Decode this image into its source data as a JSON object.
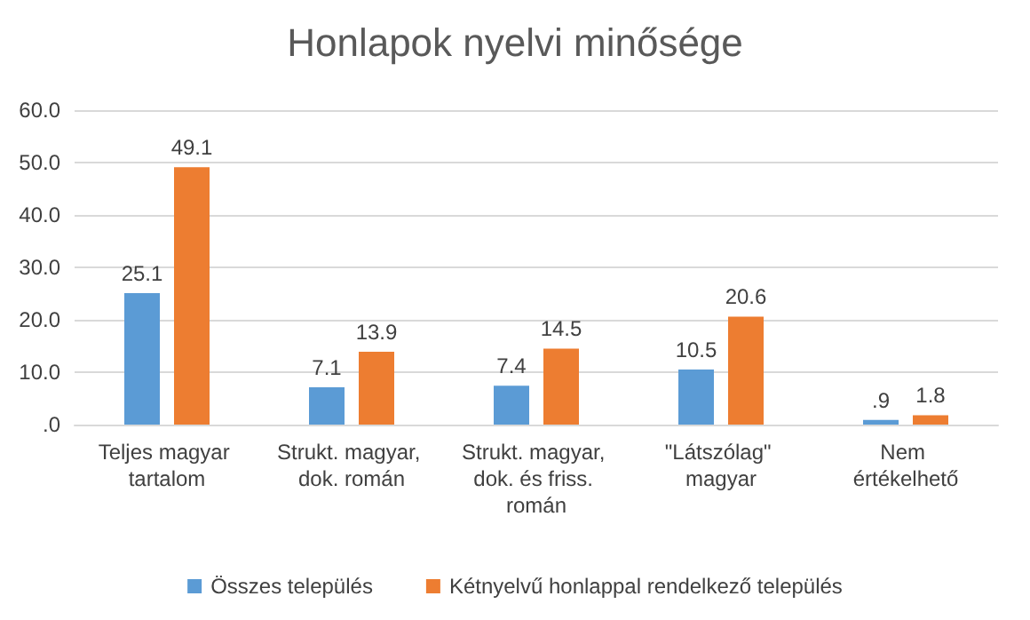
{
  "chart_data": {
    "type": "bar",
    "title": "Honlapok nyelvi minősége",
    "categories": [
      "Teljes magyar tartalom",
      "Strukt. magyar, dok. román",
      "Strukt. magyar, dok. és friss. román",
      "\"Látszólag\" magyar",
      "Nem értékelhető"
    ],
    "series": [
      {
        "name": "Összes település",
        "color": "#5b9bd5",
        "values": [
          25.1,
          7.1,
          7.4,
          10.5,
          0.9
        ],
        "value_labels": [
          "25.1",
          "7.1",
          "7.4",
          "10.5",
          ".9"
        ]
      },
      {
        "name": "Kétnyelvű honlappal rendelkező település",
        "color": "#ed7d31",
        "values": [
          49.1,
          13.9,
          14.5,
          20.6,
          1.8
        ],
        "value_labels": [
          "49.1",
          "13.9",
          "14.5",
          "20.6",
          "1.8"
        ]
      }
    ],
    "ylim": [
      0,
      60
    ],
    "yticks": [
      {
        "value": 0,
        "label": ".0"
      },
      {
        "value": 10,
        "label": "10.0"
      },
      {
        "value": 20,
        "label": "20.0"
      },
      {
        "value": 30,
        "label": "30.0"
      },
      {
        "value": 40,
        "label": "40.0"
      },
      {
        "value": 50,
        "label": "50.0"
      },
      {
        "value": 60,
        "label": "60.0"
      }
    ],
    "grid": true,
    "legend": "bottom"
  }
}
